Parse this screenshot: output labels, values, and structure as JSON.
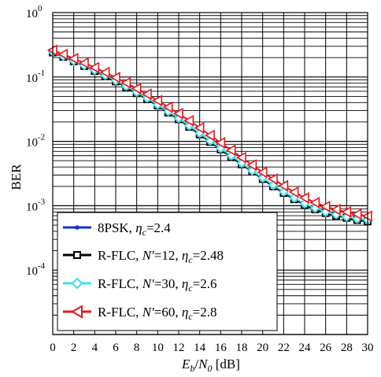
{
  "chart_data": {
    "type": "line",
    "title": "",
    "xlabel": {
      "E": "E",
      "b": "b",
      "slash": "/",
      "N": "N",
      "zero": "0",
      "unit": " [dB]"
    },
    "ylabel": "BER",
    "xlim": [
      0,
      30
    ],
    "ylim": [
      1e-05,
      1
    ],
    "yscale": "log",
    "grid": true,
    "legend_position": "bottom-left",
    "x_ticks": [
      "0",
      "2",
      "4",
      "6",
      "8",
      "10",
      "12",
      "14",
      "16",
      "18",
      "20",
      "22",
      "24",
      "26",
      "28",
      "30"
    ],
    "y_ticks": [
      {
        "base": "10",
        "exp": "0"
      },
      {
        "base": "10",
        "exp": "-1"
      },
      {
        "base": "10",
        "exp": "-2"
      },
      {
        "base": "10",
        "exp": "-3"
      },
      {
        "base": "10",
        "exp": "-4"
      }
    ],
    "x": [
      0,
      1,
      2,
      3,
      4,
      5,
      6,
      7,
      8,
      9,
      10,
      11,
      12,
      13,
      14,
      15,
      16,
      17,
      18,
      19,
      20,
      21,
      22,
      23,
      24,
      25,
      26,
      27,
      28,
      29,
      30
    ],
    "series": [
      {
        "name": {
          "pre": "8PSK, ",
          "eta": "η",
          "c": "c",
          "post": "=2.4"
        },
        "color": "#1530d8",
        "marker": "dot",
        "values": [
          0.24,
          0.205,
          0.175,
          0.148,
          0.125,
          0.104,
          0.086,
          0.07,
          0.056,
          0.045,
          0.036,
          0.028,
          0.022,
          0.0168,
          0.0128,
          0.0098,
          0.0075,
          0.0057,
          0.0044,
          0.0034,
          0.0026,
          0.002,
          0.00158,
          0.00126,
          0.00103,
          0.00088,
          0.00077,
          0.0007,
          0.00065,
          0.0006,
          0.00057
        ]
      },
      {
        "name": {
          "pre": "R-FLC,  ",
          "n": "N′",
          "mid": "=12,  ",
          "eta": "η",
          "c": "c",
          "post": "=2.48"
        },
        "color": "#000000",
        "marker": "square",
        "values": [
          0.24,
          0.205,
          0.175,
          0.148,
          0.124,
          0.103,
          0.085,
          0.069,
          0.056,
          0.045,
          0.036,
          0.028,
          0.022,
          0.0168,
          0.0128,
          0.0098,
          0.0075,
          0.0057,
          0.0044,
          0.0034,
          0.0026,
          0.002,
          0.00158,
          0.00126,
          0.00103,
          0.00088,
          0.00077,
          0.0007,
          0.00065,
          0.0006,
          0.00057
        ]
      },
      {
        "name": {
          "pre": "R-FLC,  ",
          "n": "N′",
          "mid": "=30,  ",
          "eta": "η",
          "c": "c",
          "post": "=2.6"
        },
        "color": "#3ee0ee",
        "marker": "diamond",
        "values": [
          0.245,
          0.21,
          0.178,
          0.151,
          0.127,
          0.106,
          0.088,
          0.072,
          0.058,
          0.047,
          0.037,
          0.029,
          0.0228,
          0.0175,
          0.0134,
          0.0102,
          0.0078,
          0.006,
          0.0046,
          0.0035,
          0.0027,
          0.0021,
          0.00165,
          0.00132,
          0.00108,
          0.00092,
          0.0008,
          0.00073,
          0.00067,
          0.00063,
          0.0006
        ]
      },
      {
        "name": {
          "pre": "R-FLC,  ",
          "n": "N′",
          "mid": "=60,  ",
          "eta": "η",
          "c": "c",
          "post": "=2.8"
        },
        "color": "#e8161b",
        "marker": "triangle-left",
        "values": [
          0.26,
          0.225,
          0.193,
          0.165,
          0.14,
          0.118,
          0.098,
          0.081,
          0.066,
          0.054,
          0.043,
          0.034,
          0.027,
          0.021,
          0.0162,
          0.0124,
          0.0095,
          0.0073,
          0.0056,
          0.0043,
          0.0033,
          0.0026,
          0.00205,
          0.00163,
          0.00133,
          0.00112,
          0.00097,
          0.00087,
          0.0008,
          0.00074,
          0.00069
        ]
      }
    ]
  }
}
